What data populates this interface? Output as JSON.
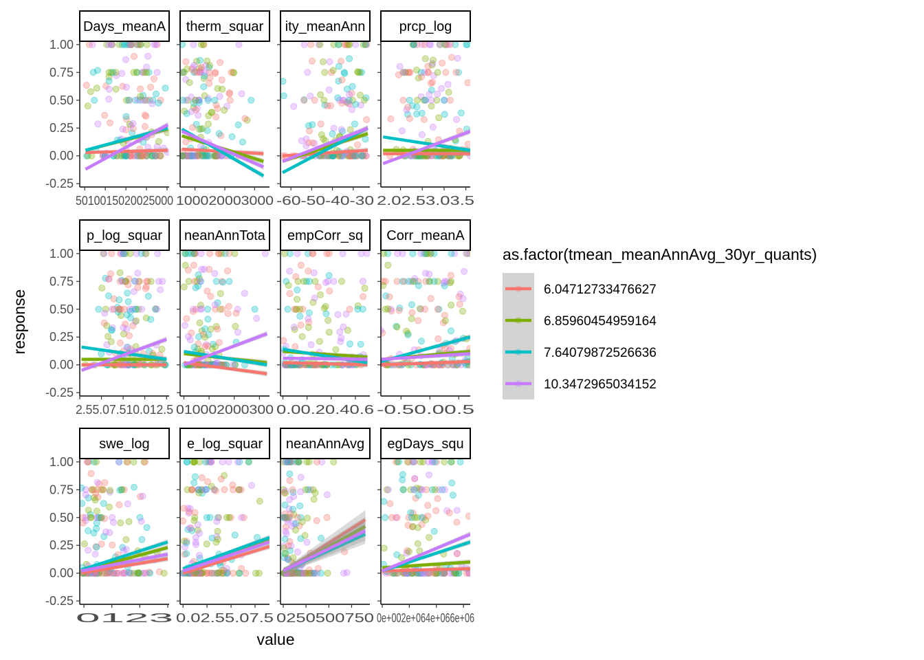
{
  "chart_data": {
    "type": "scatter",
    "xlabel": "value",
    "ylabel": "response",
    "legend": {
      "title": "as.factor(tmean_meanAnnAvg_30yr_quants)",
      "placement": "right",
      "entries": [
        {
          "label": "6.04712733476627",
          "color": "#F8766D"
        },
        {
          "label": "6.85960454959164",
          "color": "#7CAE00"
        },
        {
          "label": "7.64079872526636",
          "color": "#00BFC4"
        },
        {
          "label": "10.3472965034152",
          "color": "#C77CFF"
        }
      ]
    },
    "y_ticks": [
      "1.00",
      "0.75",
      "0.50",
      "0.25",
      "0.00",
      "-0.25"
    ],
    "y_tick_values": [
      1.0,
      0.75,
      0.5,
      0.25,
      0.0,
      -0.25
    ],
    "ylim": [
      -0.28,
      1.03
    ],
    "panels": [
      {
        "strip": "Days_meanA",
        "x_ticks": [
          "500",
          "1000",
          "1500",
          "2000",
          "2500"
        ],
        "x_tick_text": "5010015020025000",
        "xlim": [
          380,
          2550
        ],
        "x_range": [
          520,
          2520
        ],
        "density": [
          0.2,
          0.35,
          0.6,
          0.8,
          1.0,
          0.95,
          0.85,
          0.7,
          0.5
        ],
        "fits": [
          [
            0.03,
            0.05
          ],
          [
            0.05,
            0.24
          ],
          [
            0.05,
            0.25
          ],
          [
            -0.12,
            0.28
          ]
        ]
      },
      {
        "strip": "therm_squar",
        "x_ticks": [
          "1000",
          "2000",
          "3000"
        ],
        "x_tick_text": "100020003000",
        "xlim": [
          500,
          3500
        ],
        "x_range": [
          560,
          3300
        ],
        "density": [
          1.0,
          0.95,
          0.85,
          0.7,
          0.5,
          0.3,
          0.18,
          0.1,
          0.06
        ],
        "fits": [
          [
            0.06,
            0.02
          ],
          [
            0.18,
            -0.05
          ],
          [
            0.24,
            -0.18
          ],
          [
            0.22,
            -0.1
          ]
        ]
      },
      {
        "strip": "ity_meanAnn",
        "x_ticks": [
          "-60",
          "-50",
          "-40",
          "-30"
        ],
        "x_tick_text": "-60-50-40-30",
        "xlim": [
          -65,
          -22
        ],
        "x_range": [
          -64,
          -23
        ],
        "density": [
          0.15,
          0.3,
          0.5,
          0.7,
          0.9,
          1.0,
          0.9,
          0.8,
          0.6
        ],
        "fits": [
          [
            0.0,
            0.05
          ],
          [
            -0.05,
            0.2
          ],
          [
            -0.15,
            0.25
          ],
          [
            -0.05,
            0.25
          ]
        ]
      },
      {
        "strip": "prcp_log",
        "x_ticks": [
          "2.0",
          "2.5",
          "3.0",
          "3.5"
        ],
        "x_tick_text": "2.02.53.03.5",
        "xlim": [
          1.55,
          3.6
        ],
        "x_range": [
          1.6,
          3.6
        ],
        "density": [
          0.08,
          0.25,
          0.6,
          1.0,
          0.95,
          0.8,
          0.6,
          0.4,
          0.2
        ],
        "fits": [
          [
            0.02,
            0.02
          ],
          [
            0.05,
            0.05
          ],
          [
            0.17,
            0.05
          ],
          [
            -0.07,
            0.22
          ]
        ]
      },
      {
        "strip": "p_log_squar",
        "x_ticks": [
          "2.5",
          "5.0",
          "7.5",
          "10.0",
          "12.5"
        ],
        "x_tick_text": "2.55.07.510.012.5",
        "xlim": [
          2.5,
          12.8
        ],
        "x_range": [
          2.7,
          12.5
        ],
        "density": [
          0.05,
          0.2,
          0.5,
          0.9,
          1.0,
          0.85,
          0.6,
          0.35,
          0.15
        ],
        "fits": [
          [
            0.0,
            0.0
          ],
          [
            0.05,
            0.05
          ],
          [
            0.16,
            0.05
          ],
          [
            -0.05,
            0.23
          ]
        ]
      },
      {
        "strip": "neanAnnTota",
        "x_ticks": [
          "0",
          "1000",
          "2000",
          "3000"
        ],
        "x_tick_text": "010002000300",
        "xlim": [
          -150,
          3400
        ],
        "x_range": [
          0,
          3300
        ],
        "density": [
          0.6,
          1.0,
          0.95,
          0.75,
          0.4,
          0.15,
          0.05,
          0.02,
          0.01
        ],
        "fits": [
          [
            0.02,
            -0.08
          ],
          [
            0.1,
            0.02
          ],
          [
            0.12,
            0.0
          ],
          [
            0.0,
            0.28
          ]
        ]
      },
      {
        "strip": "empCorr_sq",
        "x_ticks": [
          "0.0",
          "0.2",
          "0.4",
          "0.6"
        ],
        "x_tick_text": "0.00.20.40.6",
        "xlim": [
          -0.02,
          0.72
        ],
        "x_range": [
          0.0,
          0.7
        ],
        "density": [
          1.0,
          0.9,
          0.8,
          0.7,
          0.6,
          0.5,
          0.4,
          0.3,
          0.2
        ],
        "fits": [
          [
            0.02,
            0.0
          ],
          [
            0.12,
            0.07
          ],
          [
            0.14,
            0.02
          ],
          [
            0.06,
            0.05
          ]
        ]
      },
      {
        "strip": "Corr_meanA",
        "x_ticks": [
          "-0.5",
          "0.0",
          "0.5"
        ],
        "x_tick_text": "-0.50.00.5",
        "xlim": [
          -0.85,
          0.7
        ],
        "x_range": [
          -0.85,
          0.7
        ],
        "density": [
          0.8,
          0.85,
          0.9,
          0.9,
          0.95,
          0.95,
          1.0,
          0.95,
          0.9
        ],
        "fits": [
          [
            0.0,
            0.03
          ],
          [
            0.05,
            0.12
          ],
          [
            0.03,
            0.25
          ],
          [
            0.05,
            0.1
          ]
        ]
      },
      {
        "strip": "swe_log",
        "x_ticks": [
          "0",
          "1",
          "2",
          "3"
        ],
        "x_tick_text": "0123",
        "xlim": [
          -0.15,
          3.05
        ],
        "x_range": [
          -0.1,
          3.0
        ],
        "density": [
          1.0,
          0.95,
          0.85,
          0.7,
          0.55,
          0.4,
          0.25,
          0.12,
          0.05
        ],
        "fits": [
          [
            0.0,
            0.13
          ],
          [
            0.02,
            0.23
          ],
          [
            0.03,
            0.28
          ],
          [
            0.02,
            0.17
          ]
        ]
      },
      {
        "strip": "e_log_squar",
        "x_ticks": [
          "0.0",
          "2.5",
          "5.0",
          "7.5"
        ],
        "x_tick_text": "0.02.55.07.5",
        "xlim": [
          -0.3,
          9.0
        ],
        "x_range": [
          0.0,
          9.0
        ],
        "density": [
          1.0,
          0.9,
          0.75,
          0.6,
          0.45,
          0.3,
          0.18,
          0.08,
          0.03
        ],
        "fits": [
          [
            0.0,
            0.24
          ],
          [
            0.04,
            0.3
          ],
          [
            0.04,
            0.32
          ],
          [
            0.02,
            0.28
          ]
        ]
      },
      {
        "strip": "neanAnnAvg",
        "x_ticks": [
          "0",
          "250",
          "500",
          "750"
        ],
        "x_tick_text": "0250500750",
        "xlim": [
          -30,
          950
        ],
        "x_range": [
          0,
          900
        ],
        "density": [
          1.0,
          0.5,
          0.2,
          0.08,
          0.04,
          0.02,
          0.01,
          0.01,
          0.01
        ],
        "fits": [
          [
            0.01,
            0.48
          ],
          [
            0.01,
            0.42
          ],
          [
            0.02,
            0.35
          ],
          [
            0.02,
            0.38
          ]
        ]
      },
      {
        "strip": "egDays_squ",
        "x_ticks": [
          "0e+00",
          "2e+06",
          "4e+06",
          "6e+06"
        ],
        "x_tick_text": "0e+002e+064e+066e+06",
        "xlim": [
          -100000,
          6500000
        ],
        "x_range": [
          0,
          6500000
        ],
        "density": [
          0.4,
          0.7,
          0.9,
          1.0,
          0.95,
          0.85,
          0.75,
          0.6,
          0.5
        ],
        "fits": [
          [
            0.02,
            0.04
          ],
          [
            0.05,
            0.1
          ],
          [
            0.02,
            0.28
          ],
          [
            0.02,
            0.35
          ]
        ]
      }
    ]
  }
}
